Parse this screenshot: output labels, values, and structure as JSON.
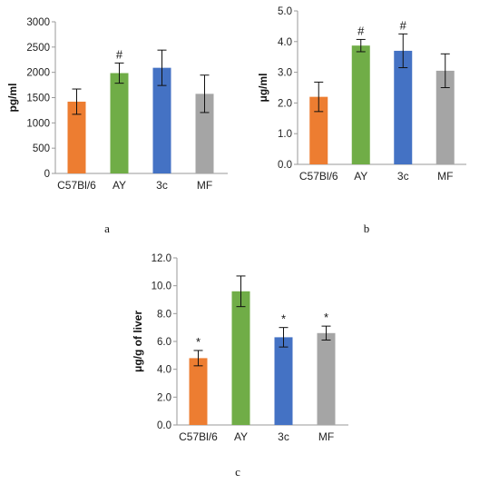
{
  "chart_data": [
    {
      "type": "bar",
      "panel_label": "a",
      "ylabel": "pg/ml",
      "ylim": [
        0,
        3000
      ],
      "yticks": [
        "0",
        "500",
        "1000",
        "1500",
        "2000",
        "2500",
        "3000"
      ],
      "categories": [
        "C57Bl/6",
        "AY",
        "3c",
        "MF"
      ],
      "values": [
        1420,
        1985,
        2090,
        1575
      ],
      "errors": [
        250,
        200,
        350,
        370
      ],
      "annotations": [
        "",
        "#",
        "",
        ""
      ],
      "colors": [
        "#ED7D31",
        "#70AD47",
        "#4472C4",
        "#A5A5A5"
      ]
    },
    {
      "type": "bar",
      "panel_label": "b",
      "ylabel": "μg/ml",
      "ylim": [
        0,
        5.0
      ],
      "yticks": [
        "0.0",
        "1.0",
        "2.0",
        "3.0",
        "4.0",
        "5.0"
      ],
      "categories": [
        "C57Bl/6",
        "AY",
        "3c",
        "MF"
      ],
      "values": [
        2.2,
        3.87,
        3.7,
        3.05
      ],
      "errors": [
        0.48,
        0.2,
        0.55,
        0.55
      ],
      "annotations": [
        "",
        "#",
        "#",
        ""
      ],
      "colors": [
        "#ED7D31",
        "#70AD47",
        "#4472C4",
        "#A5A5A5"
      ]
    },
    {
      "type": "bar",
      "panel_label": "c",
      "ylabel": "μg/g of liver",
      "ylim": [
        0,
        12.0
      ],
      "yticks": [
        "0.0",
        "2.0",
        "4.0",
        "6.0",
        "8.0",
        "10.0",
        "12.0"
      ],
      "categories": [
        "C57Bl/6",
        "AY",
        "3c",
        "MF"
      ],
      "values": [
        4.8,
        9.6,
        6.3,
        6.6
      ],
      "errors": [
        0.55,
        1.1,
        0.7,
        0.5
      ],
      "annotations": [
        "*",
        "",
        "*",
        "*"
      ],
      "colors": [
        "#ED7D31",
        "#70AD47",
        "#4472C4",
        "#A5A5A5"
      ]
    }
  ]
}
